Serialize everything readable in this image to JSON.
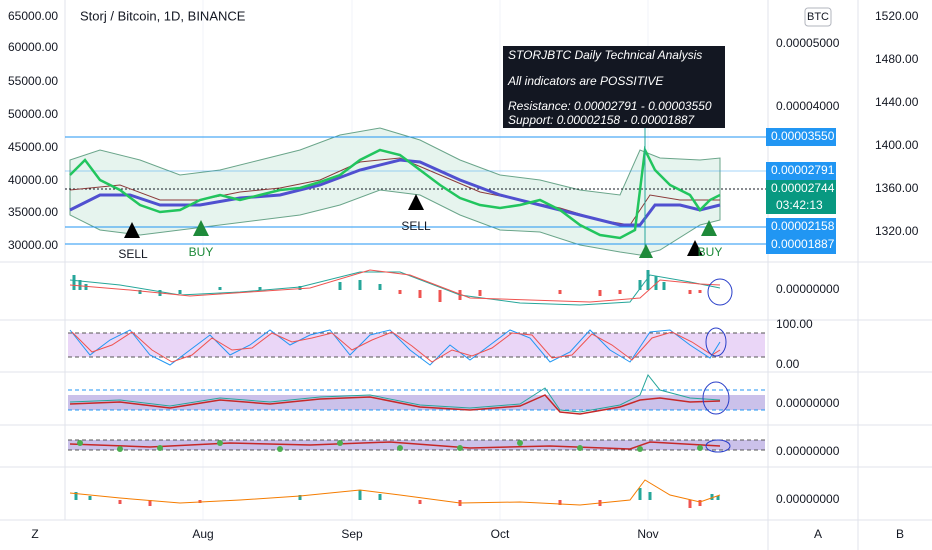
{
  "header": {
    "title": "Storj / Bitcoin, 1D, BINANCE",
    "currency_button": "BTC"
  },
  "annotation": {
    "title": "STORJBTC Daily Technical Analysis",
    "status": "All indicators are POSSITIVE",
    "resistance": "Resistance: 0.00002791 - 0.00003550",
    "support": "Support: 0.00002158 - 0.00001887"
  },
  "left_axis": [
    "65000.00",
    "60000.00",
    "55000.00",
    "50000.00",
    "45000.00",
    "40000.00",
    "35000.00",
    "30000.00"
  ],
  "price_axis": [
    "0.00005000",
    "0.00004000"
  ],
  "badges": {
    "resistance_high": "0.00003550",
    "resistance_low": "0.00002791",
    "last_price": "0.00002744",
    "countdown": "03:42:13",
    "support_high": "0.00002158",
    "support_low": "0.00001887"
  },
  "right_axis": [
    "1520.00",
    "1480.00",
    "1440.00",
    "1400.00",
    "1360.00",
    "1320.00"
  ],
  "signals": [
    "SELL",
    "BUY",
    "SELL",
    "BUY"
  ],
  "panes": {
    "macd": "0.00000000",
    "stoch_top": "100.00",
    "stoch_bottom": "0.00",
    "pane3": "0.00000000",
    "pane4": "0.00000000",
    "pane5": "0.00000000"
  },
  "time_axis": {
    "zoom": "Z",
    "months": [
      "Aug",
      "Sep",
      "Oct",
      "Nov"
    ],
    "auto": "A",
    "log": "B"
  }
}
